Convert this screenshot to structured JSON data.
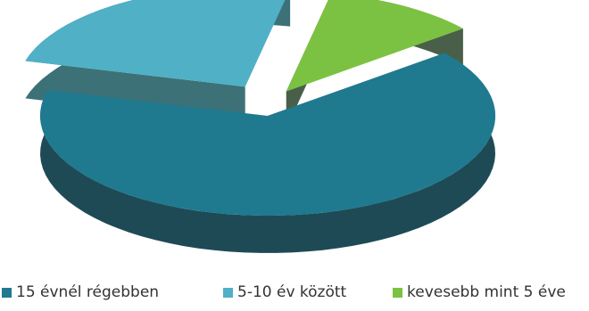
{
  "chart_data": {
    "type": "pie",
    "style": "3d-exploded",
    "title": "",
    "categories": [
      "15 évnél régebben",
      "5-10 év között",
      "kevesebb mint 5 éve"
    ],
    "values": [
      65,
      24,
      11
    ],
    "colors": [
      "#1f7a8f",
      "#4fb0c6",
      "#7cc242"
    ],
    "side_colors": [
      "#1e4a56",
      "#3c7177",
      "#4a5f4a"
    ],
    "legend": {
      "placement": "bottom"
    }
  }
}
